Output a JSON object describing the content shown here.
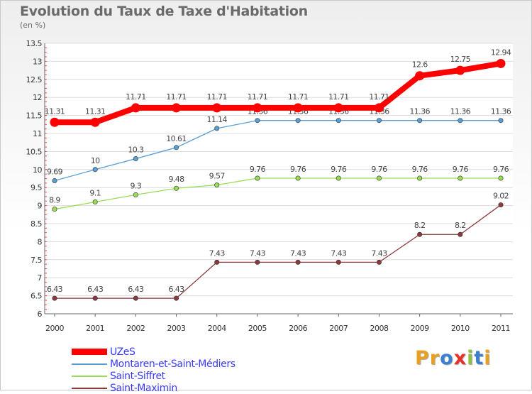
{
  "chart_data": {
    "type": "line",
    "title": "Evolution du Taux de Taxe d'Habitation",
    "subtitle": "(en %)",
    "xlabel": "",
    "ylabel": "",
    "x": [
      "2000",
      "2001",
      "2002",
      "2003",
      "2004",
      "2005",
      "2006",
      "2007",
      "2008",
      "2009",
      "2010",
      "2011"
    ],
    "ylim": [
      6,
      13.5
    ],
    "yticks": [
      "6",
      "6.5",
      "7",
      "7.5",
      "8",
      "8.5",
      "9",
      "9.5",
      "10",
      "10.5",
      "11",
      "11.5",
      "12",
      "12.5",
      "13",
      "13.5"
    ],
    "legend_position": "bottom-left",
    "series": [
      {
        "name": "UZeS",
        "color": "#ff0000",
        "values": [
          11.31,
          11.31,
          11.71,
          11.71,
          11.71,
          11.71,
          11.71,
          11.71,
          11.71,
          12.6,
          12.75,
          12.94
        ],
        "labels": [
          "11.31",
          "11.31",
          "11.71",
          "11.71",
          "11.71",
          "11.71",
          "11.71",
          "11.71",
          "11.71",
          "12.6",
          "12.75",
          "12.94"
        ]
      },
      {
        "name": "Montaren-et-Saint-Médiers",
        "color": "#5a9fd4",
        "values": [
          9.69,
          10,
          10.3,
          10.61,
          11.14,
          11.36,
          11.36,
          11.36,
          11.36,
          11.36,
          11.36,
          11.36
        ],
        "labels": [
          "9.69",
          "10",
          "10.3",
          "10.61",
          "11.14",
          "11.36",
          "11.36",
          "11.36",
          "11.36",
          "11.36",
          "11.36",
          "11.36"
        ]
      },
      {
        "name": "Saint-Siffret",
        "color": "#99dd55",
        "values": [
          8.9,
          9.1,
          9.3,
          9.48,
          9.57,
          9.76,
          9.76,
          9.76,
          9.76,
          9.76,
          9.76,
          9.76
        ],
        "labels": [
          "8.9",
          "9.1",
          "9.3",
          "9.48",
          "9.57",
          "9.76",
          "9.76",
          "9.76",
          "9.76",
          "9.76",
          "9.76",
          "9.76"
        ]
      },
      {
        "name": "Saint-Maximin",
        "color": "#8a3a3a",
        "values": [
          6.43,
          6.43,
          6.43,
          6.43,
          7.43,
          7.43,
          7.43,
          7.43,
          7.43,
          8.2,
          8.2,
          9.02
        ],
        "labels": [
          "6.43",
          "6.43",
          "6.43",
          "6.43",
          "7.43",
          "7.43",
          "7.43",
          "7.43",
          "7.43",
          "8.2",
          "8.2",
          "9.02"
        ]
      }
    ]
  },
  "brand": {
    "letters": [
      "P",
      "r",
      "o",
      "x",
      "i",
      "t",
      "i"
    ],
    "colors": [
      "#e8a020",
      "#e8a020",
      "#3a7fd0",
      "#e8302a",
      "#90c040",
      "#3a7fd0",
      "#e8a020"
    ]
  }
}
